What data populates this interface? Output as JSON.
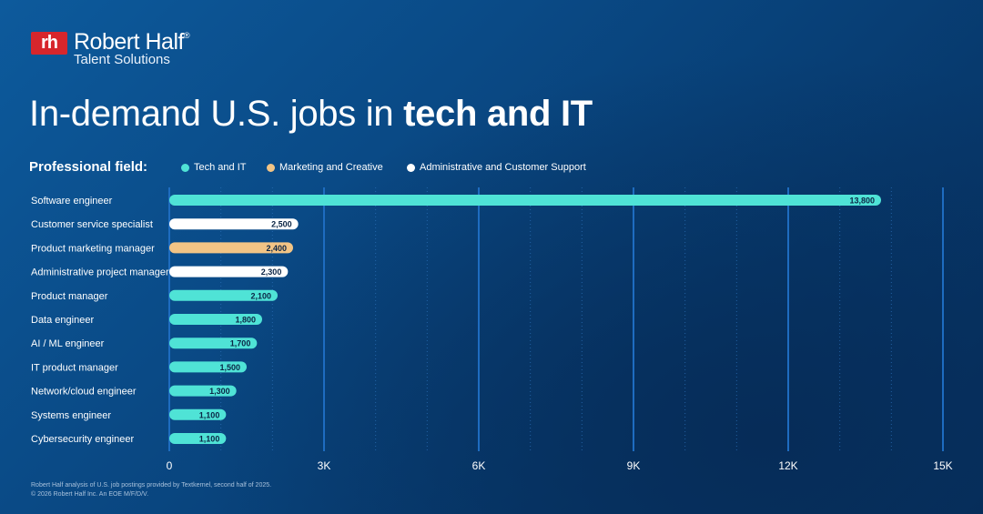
{
  "brand": {
    "mark": "rh",
    "name": "Robert Half",
    "registered": "®",
    "subtitle": "Talent Solutions"
  },
  "title": {
    "prefix": "In-demand U.S. jobs in ",
    "bold": "tech and IT"
  },
  "legend": {
    "label": "Professional field:",
    "items": [
      {
        "label": "Tech and IT",
        "color": "#4fe3d6"
      },
      {
        "label": "Marketing and Creative",
        "color": "#f2c485"
      },
      {
        "label": "Administrative and Customer Support",
        "color": "#ffffff"
      }
    ]
  },
  "chart_data": {
    "type": "bar",
    "orientation": "horizontal",
    "title": "In-demand U.S. jobs in tech and IT",
    "xlabel": "",
    "ylabel": "",
    "xlim": [
      0,
      15000
    ],
    "ticks": [
      0,
      3000,
      6000,
      9000,
      12000,
      15000
    ],
    "tick_labels": [
      "0",
      "3K",
      "6K",
      "9K",
      "12K",
      "15K"
    ],
    "bars": [
      {
        "category": "Software engineer",
        "value": 13800,
        "label": "13,800",
        "field": "Tech and IT"
      },
      {
        "category": "Customer service specialist",
        "value": 2500,
        "label": "2,500",
        "field": "Administrative and Customer Support"
      },
      {
        "category": "Product marketing manager",
        "value": 2400,
        "label": "2,400",
        "field": "Marketing and Creative"
      },
      {
        "category": "Administrative project manager",
        "value": 2300,
        "label": "2,300",
        "field": "Administrative and Customer Support"
      },
      {
        "category": "Product manager",
        "value": 2100,
        "label": "2,100",
        "field": "Tech and IT"
      },
      {
        "category": "Data engineer",
        "value": 1800,
        "label": "1,800",
        "field": "Tech and IT"
      },
      {
        "category": "AI / ML engineer",
        "value": 1700,
        "label": "1,700",
        "field": "Tech and IT"
      },
      {
        "category": "IT product manager",
        "value": 1500,
        "label": "1,500",
        "field": "Tech and IT"
      },
      {
        "category": "Network/cloud engineer",
        "value": 1300,
        "label": "1,300",
        "field": "Tech and IT"
      },
      {
        "category": "Systems engineer",
        "value": 1100,
        "label": "1,100",
        "field": "Tech and IT"
      },
      {
        "category": "Cybersecurity engineer",
        "value": 1100,
        "label": "1,100",
        "field": "Tech and IT"
      }
    ],
    "colors": {
      "Tech and IT": "#4fe3d6",
      "Marketing and Creative": "#f2c485",
      "Administrative and Customer Support": "#ffffff"
    },
    "gridline_color": "#1e6cc0"
  },
  "footnote": {
    "line1": "Robert Half analysis of U.S. job postings provided by Textkernel, second half of 2025.",
    "line2": "© 2026 Robert Half Inc. An EOE M/F/D/V."
  }
}
